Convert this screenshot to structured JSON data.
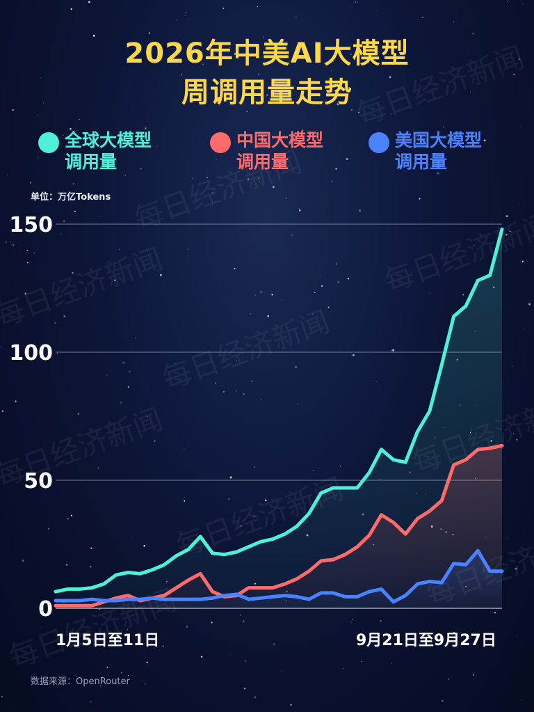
{
  "title_line1": "2026年中美AI大模型",
  "title_line2": "周调用量走势",
  "unit": "单位：万亿Tokens",
  "source": "数据来源：OpenRouter",
  "watermark": "每日经济新闻",
  "colors": {
    "background": "#0c1638",
    "title": "#ffd84a",
    "global": "#4ef0d8",
    "china": "#ff6b6b",
    "us": "#4a82ff",
    "grid": "#8a93ad"
  },
  "chart_data": {
    "type": "line",
    "ylim": [
      0,
      150
    ],
    "yticks": [
      "0",
      "50",
      "100",
      "150"
    ],
    "x_first_label": "1月5日至11日",
    "x_last_label": "9月21日至9月27日",
    "series": [
      {
        "name": "全球大模型调用量",
        "color": "#4ef0d8",
        "values": [
          6.5,
          7.5,
          7.5,
          8,
          9.5,
          13,
          14,
          13.5,
          15,
          17,
          20.5,
          23,
          28,
          21.5,
          21,
          22,
          24,
          26,
          27,
          29,
          32,
          37,
          45,
          47,
          47,
          47,
          53,
          62,
          58,
          57,
          69,
          77,
          95,
          114,
          118,
          128,
          130,
          148
        ]
      },
      {
        "name": "中国大模型调用量",
        "color": "#ff6b6b",
        "values": [
          1,
          1,
          1,
          1,
          2.5,
          4,
          5,
          3,
          4,
          5,
          8,
          11,
          13.5,
          6.5,
          4.5,
          5,
          8,
          8,
          8,
          9.5,
          11.5,
          14.5,
          18.5,
          19,
          21,
          24,
          28.5,
          36.5,
          33.5,
          29,
          35,
          38,
          42,
          56,
          58,
          62,
          62.5,
          63.5
        ]
      },
      {
        "name": "美国大模型调用量",
        "color": "#4a82ff",
        "values": [
          3,
          3,
          3,
          3.5,
          3,
          3,
          3.5,
          3.5,
          4,
          3.5,
          3.5,
          3.5,
          3.5,
          4,
          5,
          5.5,
          3.5,
          4,
          4.5,
          5,
          4.5,
          3.5,
          6,
          6,
          4.5,
          4.5,
          6.5,
          7.5,
          2.5,
          5,
          9.5,
          10.5,
          10,
          17.5,
          17,
          22.5,
          14.5,
          14.5
        ]
      }
    ]
  }
}
